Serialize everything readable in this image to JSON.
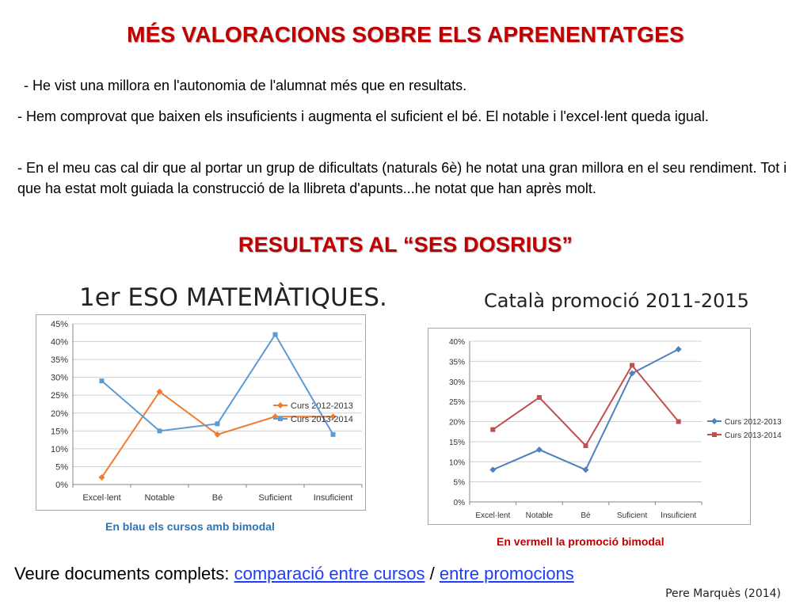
{
  "slide": {
    "title": "MÉS VALORACIONS SOBRE ELS APRENENTATGES",
    "paragraphs": [
      "- He vist una millora en l'autonomia de l'alumnat més que en resultats.",
      "- Hem comprovat que baixen els insuficients i augmenta el suficient el bé. El notable i l'excel·lent queda igual.",
      "- En el meu cas cal dir que al portar un grup de dificultats (naturals 6è) he notat una gran millora en el seu rendiment. Tot i que ha estat molt guiada la construcció de la llibreta d'apunts...he notat que han après molt."
    ],
    "results_title": "RESULTATS AL “SES DOSRIUS”",
    "caption_left": "En blau els cursos amb bimodal",
    "caption_right": "En vermell la promoció bimodal",
    "footer": {
      "prefix": "Veure  documents complets: ",
      "link1": "comparació entre cursos",
      "separator": " / ",
      "link2": "entre promocions"
    },
    "credit": "Pere Marquès (2014)"
  },
  "chart_data": [
    {
      "type": "line",
      "title": "1er ESO MATEMÀTIQUES.",
      "categories": [
        "Excel·lent",
        "Notable",
        "Bé",
        "Suficient",
        "Insuficient"
      ],
      "ylim": [
        0,
        45
      ],
      "yticks": [
        "0%",
        "5%",
        "10%",
        "15%",
        "20%",
        "25%",
        "30%",
        "35%",
        "40%",
        "45%"
      ],
      "series": [
        {
          "name": "Curs 2012-2013",
          "values": [
            2,
            26,
            14,
            19,
            19
          ],
          "color": "#ed7d31",
          "marker": "diamond"
        },
        {
          "name": "Curs 2013-2014",
          "values": [
            29,
            15,
            17,
            42,
            14
          ],
          "color": "#5b9bd5",
          "marker": "square"
        }
      ],
      "legend": "right",
      "grid": true
    },
    {
      "type": "line",
      "title": "Català promoció 2011-2015",
      "categories": [
        "Excel·lent",
        "Notable",
        "Bé",
        "Suficient",
        "Insuficient"
      ],
      "ylim": [
        0,
        40
      ],
      "yticks": [
        "0%",
        "5%",
        "10%",
        "15%",
        "20%",
        "25%",
        "30%",
        "35%",
        "40%"
      ],
      "series": [
        {
          "name": "Curs 2012-2013",
          "values": [
            8,
            13,
            8,
            32,
            38
          ],
          "color": "#4f81bd",
          "marker": "diamond"
        },
        {
          "name": "Curs 2013-2014",
          "values": [
            18,
            26,
            14,
            34,
            20
          ],
          "color": "#c0504d",
          "marker": "square"
        }
      ],
      "legend": "right",
      "grid": true
    }
  ]
}
